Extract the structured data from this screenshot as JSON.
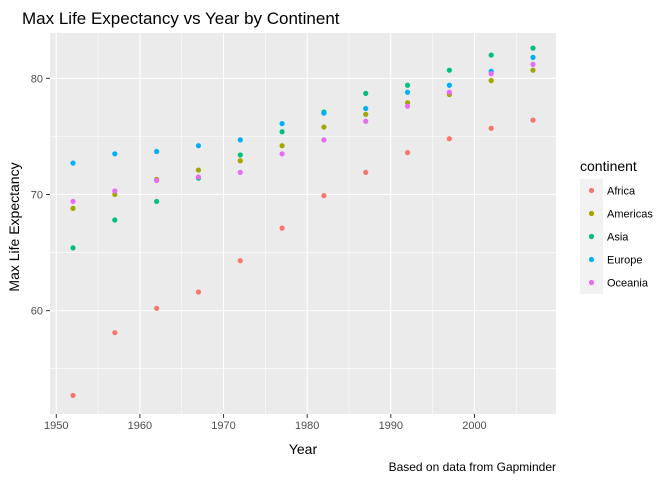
{
  "chart_data": {
    "type": "scatter",
    "title": "Max Life Expectancy vs Year by Continent",
    "xlabel": "Year",
    "ylabel": "Max Life Expectancy",
    "caption": "Based on data from Gapminder",
    "legend_title": "continent",
    "legend_position": "right",
    "grid": true,
    "xlim": [
      1949.25,
      2009.75
    ],
    "ylim": [
      51.1,
      83.9
    ],
    "x_ticks": [
      1950,
      1960,
      1970,
      1980,
      1990,
      2000
    ],
    "x_tick_labels": [
      "1950",
      "1960",
      "1970",
      "1980",
      "1990",
      "2000"
    ],
    "y_ticks": [
      60,
      70,
      80
    ],
    "y_tick_labels": [
      "60",
      "70",
      "80"
    ],
    "x": [
      1952,
      1957,
      1962,
      1967,
      1972,
      1977,
      1982,
      1987,
      1992,
      1997,
      2002,
      2007
    ],
    "series": [
      {
        "name": "Africa",
        "color": "#F8766D",
        "values": [
          52.7,
          58.1,
          60.2,
          61.6,
          64.3,
          67.1,
          69.9,
          71.9,
          73.6,
          74.8,
          75.7,
          76.4
        ]
      },
      {
        "name": "Americas",
        "color": "#A3A500",
        "values": [
          68.8,
          70.0,
          71.3,
          72.1,
          72.9,
          74.2,
          75.8,
          76.9,
          77.9,
          78.6,
          79.8,
          80.7
        ]
      },
      {
        "name": "Asia",
        "color": "#00BF7D",
        "values": [
          65.4,
          67.8,
          69.4,
          71.4,
          73.4,
          75.4,
          77.1,
          78.7,
          79.4,
          80.7,
          82.0,
          82.6
        ]
      },
      {
        "name": "Europe",
        "color": "#00B0F6",
        "values": [
          72.7,
          73.5,
          73.7,
          74.2,
          74.7,
          76.1,
          77.0,
          77.4,
          78.8,
          79.4,
          80.6,
          81.8
        ]
      },
      {
        "name": "Oceania",
        "color": "#E76BF3",
        "values": [
          69.4,
          70.3,
          71.2,
          71.5,
          71.9,
          73.5,
          74.7,
          76.3,
          77.6,
          78.8,
          80.4,
          81.2
        ]
      }
    ]
  }
}
